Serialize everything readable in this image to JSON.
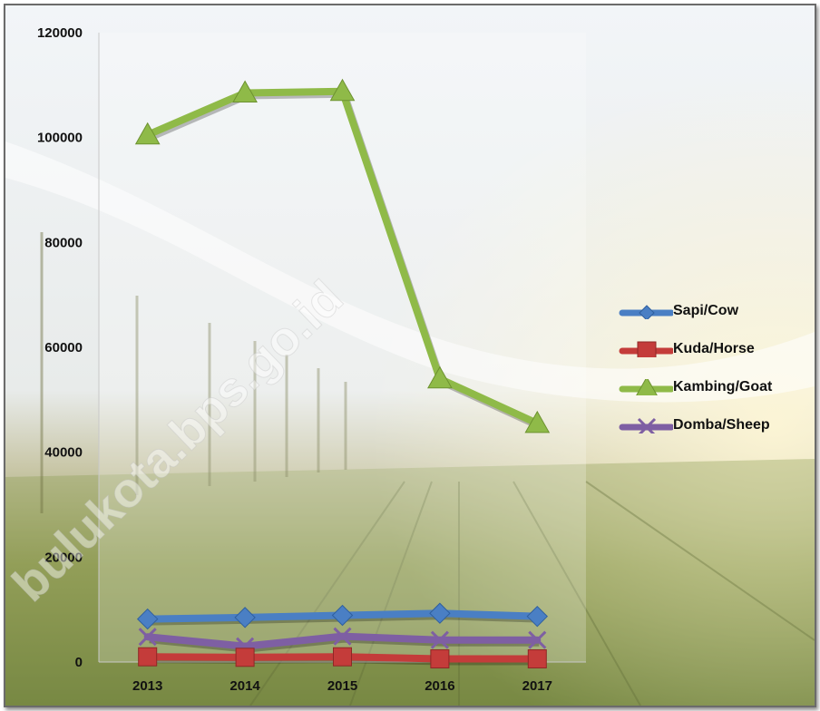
{
  "chart_data": {
    "type": "line",
    "title": "",
    "xlabel": "",
    "ylabel": "",
    "categories": [
      "2013",
      "2014",
      "2015",
      "2016",
      "2017"
    ],
    "y_ticks": [
      "0",
      "20000",
      "40000",
      "60000",
      "80000",
      "100000",
      "120000"
    ],
    "ylim": [
      0,
      120000
    ],
    "grid": false,
    "legend_position": "right",
    "watermark": "bulukota.bps.go.id",
    "series": [
      {
        "name": "Sapi/Cow",
        "values": [
          8200,
          8500,
          8900,
          9300,
          8700
        ],
        "color": "#4a7fc4",
        "marker": "diamond"
      },
      {
        "name": "Kuda/Horse",
        "values": [
          1000,
          900,
          1000,
          600,
          600
        ],
        "color": "#c43c3a",
        "marker": "square"
      },
      {
        "name": "Kambing/Goat",
        "values": [
          100500,
          108500,
          108800,
          54000,
          45500
        ],
        "color": "#8fba48",
        "marker": "triangle"
      },
      {
        "name": "Domba/Sheep",
        "values": [
          4800,
          3000,
          4900,
          4200,
          4200
        ],
        "color": "#7e5fa3",
        "marker": "x"
      }
    ]
  }
}
